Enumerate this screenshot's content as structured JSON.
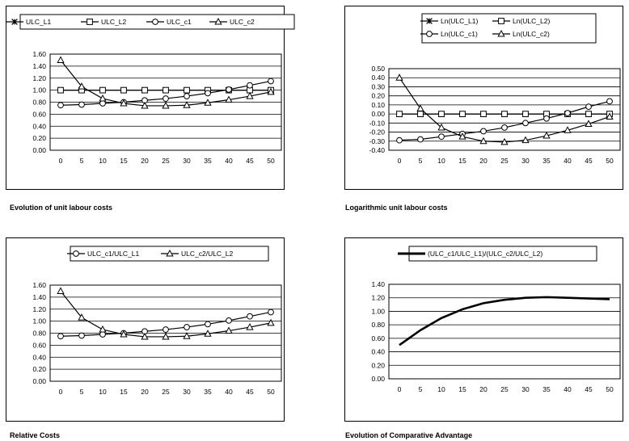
{
  "colors": {
    "line": "#000000",
    "grid": "#000000",
    "background": "#ffffff"
  },
  "chart_data": [
    {
      "type": "line",
      "caption": "Evolution of unit labour costs",
      "x": [
        0,
        5,
        10,
        15,
        20,
        25,
        30,
        35,
        40,
        45,
        50
      ],
      "ylim": [
        0,
        1.6
      ],
      "yticks": [
        0,
        0.2,
        0.4,
        0.6,
        0.8,
        1.0,
        1.2,
        1.4,
        1.6
      ],
      "ytick_labels": [
        "0.00",
        "0.20",
        "0.40",
        "0.60",
        "0.80",
        "1.00",
        "1.20",
        "1.40",
        "1.60"
      ],
      "grid": true,
      "legend_position": "top",
      "series": [
        {
          "name": "ULC_L1",
          "marker": "star",
          "values": [
            1.0,
            1.0,
            1.0,
            1.0,
            1.0,
            1.0,
            1.0,
            1.0,
            1.0,
            1.0,
            1.0
          ]
        },
        {
          "name": "ULC_L2",
          "marker": "square",
          "values": [
            1.0,
            1.0,
            1.0,
            1.0,
            1.0,
            1.0,
            1.0,
            1.0,
            1.0,
            1.0,
            1.0
          ]
        },
        {
          "name": "ULC_c1",
          "marker": "circle",
          "values": [
            0.75,
            0.76,
            0.78,
            0.8,
            0.83,
            0.86,
            0.9,
            0.95,
            1.01,
            1.08,
            1.15
          ]
        },
        {
          "name": "ULC_c2",
          "marker": "triangle",
          "values": [
            1.5,
            1.06,
            0.86,
            0.78,
            0.74,
            0.74,
            0.75,
            0.79,
            0.84,
            0.9,
            0.97
          ]
        }
      ]
    },
    {
      "type": "line",
      "caption": "Logarithmic unit labour costs",
      "x": [
        0,
        5,
        10,
        15,
        20,
        25,
        30,
        35,
        40,
        45,
        50
      ],
      "ylim": [
        -0.4,
        0.5
      ],
      "yticks": [
        -0.4,
        -0.3,
        -0.2,
        -0.1,
        0,
        0.1,
        0.2,
        0.3,
        0.4,
        0.5
      ],
      "ytick_labels": [
        "-0.40",
        "-0.30",
        "-0.20",
        "-0.10",
        "0.00",
        "0.10",
        "0.20",
        "0.30",
        "0.40",
        "0.50"
      ],
      "grid": true,
      "legend_position": "top",
      "series": [
        {
          "name": "Ln(ULC_L1)",
          "marker": "star",
          "values": [
            0,
            0,
            0,
            0,
            0,
            0,
            0,
            0,
            0,
            0,
            0
          ]
        },
        {
          "name": "Ln(ULC_L2)",
          "marker": "square",
          "values": [
            0,
            0,
            0,
            0,
            0,
            0,
            0,
            0,
            0,
            0,
            0
          ]
        },
        {
          "name": "Ln(ULC_c1)",
          "marker": "circle",
          "values": [
            -0.29,
            -0.28,
            -0.25,
            -0.22,
            -0.19,
            -0.15,
            -0.1,
            -0.05,
            0.01,
            0.08,
            0.14
          ]
        },
        {
          "name": "Ln(ULC_c2)",
          "marker": "triangle",
          "values": [
            0.4,
            0.06,
            -0.15,
            -0.25,
            -0.3,
            -0.31,
            -0.29,
            -0.24,
            -0.18,
            -0.11,
            -0.03
          ]
        }
      ]
    },
    {
      "type": "line",
      "caption": "Relative Costs",
      "x": [
        0,
        5,
        10,
        15,
        20,
        25,
        30,
        35,
        40,
        45,
        50
      ],
      "ylim": [
        0,
        1.6
      ],
      "yticks": [
        0,
        0.2,
        0.4,
        0.6,
        0.8,
        1.0,
        1.2,
        1.4,
        1.6
      ],
      "ytick_labels": [
        "0.00",
        "0.20",
        "0.40",
        "0.60",
        "0.80",
        "1.00",
        "1.20",
        "1.40",
        "1.60"
      ],
      "grid": true,
      "legend_position": "top",
      "series": [
        {
          "name": "ULC_c1/ULC_L1",
          "marker": "circle",
          "values": [
            0.75,
            0.76,
            0.78,
            0.8,
            0.83,
            0.86,
            0.9,
            0.95,
            1.01,
            1.08,
            1.15
          ]
        },
        {
          "name": "ULC_c2/ULC_L2",
          "marker": "triangle",
          "values": [
            1.5,
            1.06,
            0.86,
            0.78,
            0.74,
            0.74,
            0.75,
            0.79,
            0.84,
            0.9,
            0.97
          ]
        }
      ]
    },
    {
      "type": "line",
      "caption": "Evolution of Comparative Advantage",
      "x": [
        0,
        5,
        10,
        15,
        20,
        25,
        30,
        35,
        40,
        45,
        50
      ],
      "ylim": [
        0,
        1.4
      ],
      "yticks": [
        0,
        0.2,
        0.4,
        0.6,
        0.8,
        1.0,
        1.2,
        1.4
      ],
      "ytick_labels": [
        "0.00",
        "0.20",
        "0.40",
        "0.60",
        "0.80",
        "1.00",
        "1.20",
        "1.40"
      ],
      "grid": true,
      "legend_position": "top",
      "series": [
        {
          "name": "(ULC_c1/ULC_L1)/(ULC_c2/ULC_L2)",
          "marker": "none",
          "bold": true,
          "values": [
            0.5,
            0.72,
            0.9,
            1.03,
            1.12,
            1.17,
            1.2,
            1.21,
            1.2,
            1.19,
            1.18
          ]
        }
      ]
    }
  ]
}
